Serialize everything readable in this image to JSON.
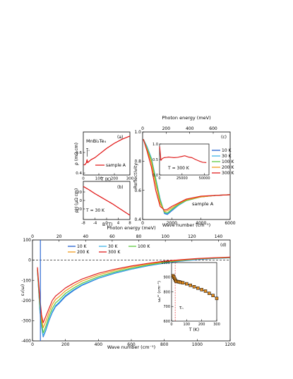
{
  "chart_data": [
    {
      "panel": "(a)",
      "type": "line",
      "annotation_compound": "MnBi₂Te₄",
      "annotation_tn": "Tₙ",
      "ylabel": "ρ (mΩ cm)",
      "xlabel": "T (K)",
      "xlim": [
        0,
        300
      ],
      "ylim": [
        0.38,
        0.8
      ],
      "xticks": [
        "0",
        "100",
        "200",
        "300"
      ],
      "yticks": [
        "0.4",
        "0.6"
      ],
      "series": [
        {
          "name": "sample A",
          "color": "#e01010",
          "x": [
            3,
            10,
            15,
            20,
            24,
            28,
            35,
            50,
            75,
            100,
            150,
            200,
            250,
            300
          ],
          "y": [
            0.48,
            0.48,
            0.49,
            0.5,
            0.53,
            0.5,
            0.51,
            0.53,
            0.55,
            0.58,
            0.64,
            0.69,
            0.73,
            0.76
          ]
        }
      ]
    },
    {
      "panel": "(b)",
      "type": "line",
      "ylabel": "ρH (μΩ cm)",
      "xlabel": "B (T)",
      "annotation": "T = 30 K",
      "xlim": [
        -8,
        8
      ],
      "ylim": [
        -45,
        45
      ],
      "xticks": [
        "-8",
        "-4",
        "0",
        "4",
        "8"
      ],
      "yticks": [
        "-20",
        "0",
        "20"
      ],
      "series": [
        {
          "name": "",
          "color": "#e01010",
          "x": [
            -8,
            -6,
            -4,
            -2,
            0,
            2,
            4,
            6,
            8
          ],
          "y": [
            33,
            25,
            16,
            8,
            0,
            -8,
            -17,
            -26,
            -35
          ]
        }
      ]
    },
    {
      "panel": "(c)",
      "type": "line",
      "top_xlabel": "Photon energy (meV)",
      "top_xticks": [
        "0",
        "200",
        "400",
        "600"
      ],
      "xlabel": "Wave number (cm⁻¹)",
      "ylabel": "Reflectivity",
      "xlim": [
        0,
        6000
      ],
      "ylim": [
        0.4,
        1.0
      ],
      "xticks": [
        "0",
        "2000",
        "4000",
        "6000"
      ],
      "yticks": [
        "0.4",
        "0.6",
        "0.8",
        "1.0"
      ],
      "annotation": "sample A",
      "legend": "right",
      "series": [
        {
          "name": "10 K",
          "color": "#1f5fd0",
          "x": [
            50,
            300,
            600,
            900,
            1200,
            1500,
            1700,
            2000,
            2500,
            3000,
            4000,
            5000,
            6000
          ],
          "y": [
            0.95,
            0.9,
            0.82,
            0.68,
            0.54,
            0.44,
            0.435,
            0.46,
            0.5,
            0.53,
            0.555,
            0.565,
            0.57
          ]
        },
        {
          "name": "30 K",
          "color": "#3fb4e8",
          "x": [
            50,
            300,
            600,
            900,
            1200,
            1500,
            1700,
            2000,
            2500,
            3000,
            4000,
            5000,
            6000
          ],
          "y": [
            0.95,
            0.9,
            0.82,
            0.68,
            0.54,
            0.445,
            0.44,
            0.465,
            0.5,
            0.53,
            0.555,
            0.565,
            0.57
          ]
        },
        {
          "name": "100 K",
          "color": "#5cc83e",
          "x": [
            50,
            300,
            600,
            900,
            1200,
            1500,
            1700,
            2000,
            2500,
            3000,
            4000,
            5000,
            6000
          ],
          "y": [
            0.95,
            0.89,
            0.81,
            0.67,
            0.53,
            0.45,
            0.445,
            0.47,
            0.505,
            0.53,
            0.555,
            0.565,
            0.57
          ]
        },
        {
          "name": "200 K",
          "color": "#f09a1e",
          "x": [
            50,
            300,
            600,
            900,
            1200,
            1500,
            1700,
            2000,
            2500,
            3000,
            4000,
            5000,
            6000
          ],
          "y": [
            0.95,
            0.88,
            0.79,
            0.64,
            0.51,
            0.455,
            0.46,
            0.48,
            0.51,
            0.535,
            0.555,
            0.565,
            0.57
          ]
        },
        {
          "name": "300 K",
          "color": "#e02020",
          "x": [
            50,
            300,
            600,
            900,
            1200,
            1500,
            1700,
            2000,
            2500,
            3000,
            4000,
            5000,
            6000
          ],
          "y": [
            0.95,
            0.87,
            0.76,
            0.6,
            0.49,
            0.465,
            0.47,
            0.49,
            0.515,
            0.54,
            0.56,
            0.565,
            0.57
          ]
        }
      ],
      "inset": {
        "annotation": "T = 300 K",
        "xlim": [
          0,
          55000
        ],
        "ylim": [
          0,
          1.0
        ],
        "xticks": [
          "0",
          "25000",
          "50000"
        ],
        "yticks": [
          "0.0",
          "0.5",
          "1.0"
        ],
        "color": "#e02020",
        "x": [
          100,
          800,
          1500,
          2000,
          3000,
          5000,
          8000,
          10000,
          13000,
          16000,
          20000,
          25000,
          28000,
          32000,
          36000,
          40000,
          45000,
          48000,
          52000
        ],
        "y": [
          0.92,
          0.7,
          0.47,
          0.49,
          0.53,
          0.56,
          0.57,
          0.58,
          0.57,
          0.56,
          0.57,
          0.6,
          0.62,
          0.58,
          0.56,
          0.5,
          0.44,
          0.41,
          0.4
        ]
      }
    },
    {
      "panel": "(d)",
      "type": "line",
      "top_xlabel": "Photon energy (meV)",
      "top_xticks": [
        "0",
        "20",
        "40",
        "60",
        "80",
        "100",
        "120",
        "140"
      ],
      "xlabel": "Wave number (cm⁻¹)",
      "ylabel": "ε₁(ω)",
      "xlim": [
        0,
        1200
      ],
      "ylim": [
        -400,
        100
      ],
      "xticks": [
        "0",
        "200",
        "400",
        "600",
        "800",
        "1000",
        "1200"
      ],
      "yticks": [
        "100",
        "0",
        "-100",
        "-200",
        "-300",
        "-400"
      ],
      "legend": "top-center",
      "series": [
        {
          "name": "10 K",
          "color": "#1f5fd0",
          "x": [
            30,
            45,
            55,
            65,
            80,
            100,
            120,
            140,
            160,
            200,
            250,
            300,
            400,
            500,
            600,
            700,
            800,
            900,
            1000,
            1100,
            1200
          ],
          "y": [
            -50,
            -250,
            -330,
            -380,
            -350,
            -300,
            -260,
            -230,
            -215,
            -180,
            -150,
            -125,
            -90,
            -65,
            -45,
            -28,
            -15,
            -5,
            3,
            8,
            11
          ]
        },
        {
          "name": "30 K",
          "color": "#3fb4e8",
          "x": [
            30,
            45,
            55,
            65,
            80,
            100,
            120,
            140,
            160,
            200,
            250,
            300,
            400,
            500,
            600,
            700,
            800,
            900,
            1000,
            1100,
            1200
          ],
          "y": [
            -50,
            -245,
            -325,
            -375,
            -345,
            -295,
            -255,
            -225,
            -210,
            -175,
            -146,
            -122,
            -88,
            -63,
            -44,
            -27,
            -14,
            -4,
            4,
            9,
            12
          ]
        },
        {
          "name": "100 K",
          "color": "#5cc83e",
          "x": [
            30,
            45,
            55,
            65,
            80,
            100,
            120,
            140,
            160,
            200,
            250,
            300,
            400,
            500,
            600,
            700,
            800,
            900,
            1000,
            1100,
            1200
          ],
          "y": [
            -45,
            -230,
            -310,
            -360,
            -330,
            -280,
            -240,
            -212,
            -198,
            -165,
            -138,
            -115,
            -82,
            -58,
            -40,
            -24,
            -11,
            -2,
            6,
            10,
            13
          ]
        },
        {
          "name": "200 K",
          "color": "#f09a1e",
          "x": [
            30,
            45,
            55,
            65,
            80,
            100,
            120,
            140,
            160,
            200,
            250,
            300,
            400,
            500,
            600,
            700,
            800,
            900,
            1000,
            1100,
            1200
          ],
          "y": [
            -40,
            -210,
            -290,
            -335,
            -305,
            -260,
            -220,
            -195,
            -182,
            -152,
            -126,
            -104,
            -73,
            -51,
            -34,
            -20,
            -8,
            0,
            7,
            11,
            14
          ]
        },
        {
          "name": "300 K",
          "color": "#e02020",
          "x": [
            30,
            45,
            55,
            65,
            80,
            100,
            120,
            140,
            160,
            200,
            250,
            300,
            400,
            500,
            600,
            700,
            800,
            900,
            1000,
            1100,
            1200
          ],
          "y": [
            -35,
            -190,
            -270,
            -310,
            -280,
            -240,
            -200,
            -178,
            -165,
            -138,
            -114,
            -94,
            -65,
            -45,
            -29,
            -16,
            -5,
            2,
            8,
            12,
            15
          ]
        }
      ],
      "inset": {
        "ylabel": "ωₚᵈʳ (cm⁻¹)",
        "xlabel": "T (K)",
        "annotation_tn": "Tₙ",
        "xlim": [
          0,
          300
        ],
        "ylim": [
          600,
          1000
        ],
        "xticks": [
          "0",
          "100",
          "200",
          "300"
        ],
        "yticks": [
          "600",
          "700",
          "800",
          "900",
          "1000"
        ],
        "marker_color": "#e08a1e",
        "x": [
          10,
          15,
          20,
          25,
          30,
          40,
          50,
          60,
          75,
          100,
          125,
          150,
          175,
          200,
          225,
          250,
          275,
          300
        ],
        "y": [
          910,
          900,
          890,
          880,
          872,
          870,
          868,
          865,
          862,
          855,
          845,
          835,
          825,
          815,
          805,
          790,
          775,
          755
        ]
      }
    }
  ]
}
